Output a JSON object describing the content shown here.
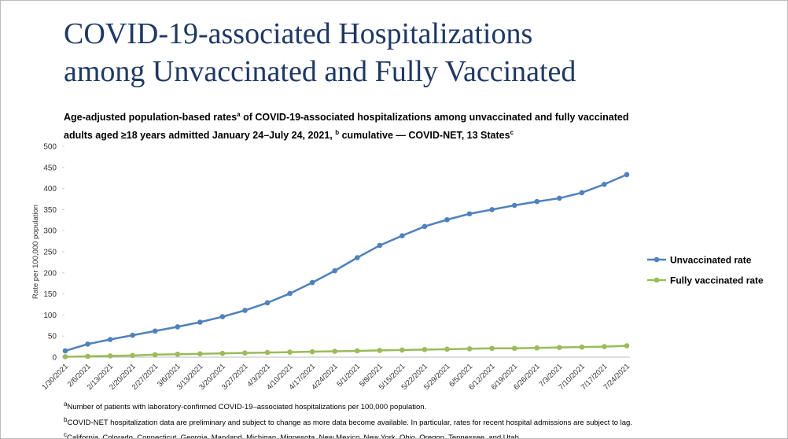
{
  "title_lines": [
    "COVID-19-associated Hospitalizations",
    "among Unvaccinated and Fully Vaccinated"
  ],
  "subtitle": [
    {
      "text": "Age-adjusted population-based rates"
    },
    {
      "sup": "a"
    },
    {
      "text": " of COVID-19-associated hospitalizations among unvaccinated and fully vaccinated adults aged ≥18 years admitted January 24–July 24, 2021, "
    },
    {
      "sup": "b"
    },
    {
      "text": " cumulative — COVID-NET, 13 States"
    },
    {
      "sup": "c"
    }
  ],
  "chart_data": {
    "type": "line",
    "y_label": "Rate per 100,000 population",
    "categories": [
      "1/30/2021",
      "2/6/2021",
      "2/13/2021",
      "2/20/2021",
      "2/27/2021",
      "3/6/2021",
      "3/13/2021",
      "3/20/2021",
      "3/27/2021",
      "4/3/2021",
      "4/10/2021",
      "4/17/2021",
      "4/24/2021",
      "5/1/2021",
      "5/8/2021",
      "5/15/2021",
      "5/22/2021",
      "5/29/2021",
      "6/5/2021",
      "6/12/2021",
      "6/19/2021",
      "6/26/2021",
      "7/3/2021",
      "7/10/2021",
      "7/17/2021",
      "7/24/2021"
    ],
    "series": [
      {
        "name": "Unvaccinated rate",
        "color": "#4f81bd",
        "values": [
          15,
          31,
          42,
          52,
          62,
          72,
          83,
          96,
          111,
          129,
          151,
          177,
          205,
          236,
          265,
          288,
          310,
          326,
          340,
          350,
          360,
          369,
          377,
          390,
          410,
          433
        ]
      },
      {
        "name": "Fully vaccinated rate",
        "color": "#9bbb59",
        "values": [
          1,
          2,
          3,
          4,
          6,
          7,
          8,
          9,
          10,
          11,
          12,
          13,
          14,
          15,
          16,
          17,
          18,
          19,
          20,
          21,
          21,
          22,
          23,
          24,
          25,
          27
        ]
      }
    ],
    "ylim": [
      0,
      500
    ],
    "yticks": [
      0,
      50,
      100,
      150,
      200,
      250,
      300,
      350,
      400,
      450,
      500
    ],
    "grid": false,
    "legend": "right"
  },
  "footnotes": [
    {
      "mark": "a",
      "text": "Number of patients with laboratory-confirmed COVID-19–associated hospitalizations per 100,000 population."
    },
    {
      "mark": "b",
      "text": "COVID-NET hospitalization data are preliminary and subject to change as more data become available. In particular, rates for recent hospital admissions are subject to lag."
    },
    {
      "mark": "c",
      "text": "California, Colorado, Connecticut, Georgia, Maryland, Michigan, Minnesota, New Mexico, New York, Ohio, Oregon, Tennessee, and Utah."
    }
  ]
}
